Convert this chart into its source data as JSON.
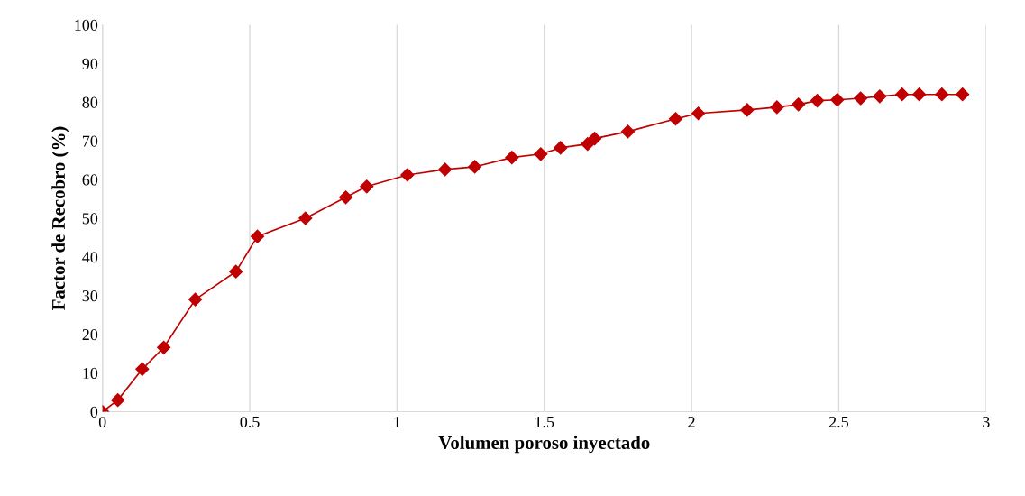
{
  "chart_data": {
    "type": "line",
    "xlabel": "Volumen poroso inyectado",
    "ylabel": "Factor de Recobro (%)",
    "xlim": [
      0,
      3
    ],
    "xticks": [
      0,
      0.5,
      1,
      1.5,
      2,
      2.5,
      3
    ],
    "ylim": [
      0,
      100
    ],
    "yticks": [
      0,
      10,
      20,
      30,
      40,
      50,
      60,
      70,
      80,
      90,
      100
    ],
    "grid": "x",
    "marker": "diamond",
    "line_style": "solid",
    "series": [
      {
        "color": "#c00000",
        "x": [
          0,
          0.052,
          0.135,
          0.208,
          0.315,
          0.453,
          0.526,
          0.689,
          0.826,
          0.897,
          1.035,
          1.163,
          1.264,
          1.39,
          1.488,
          1.555,
          1.647,
          1.671,
          1.784,
          1.946,
          2.023,
          2.189,
          2.29,
          2.363,
          2.427,
          2.495,
          2.574,
          2.639,
          2.715,
          2.773,
          2.85,
          2.92
        ],
        "values": [
          0,
          3,
          11,
          16.6,
          29,
          36.2,
          45.3,
          50,
          55.4,
          58.2,
          61.2,
          62.6,
          63.3,
          65.7,
          66.6,
          68.2,
          69.2,
          70.6,
          72.4,
          75.7,
          77.1,
          78,
          78.7,
          79.4,
          80.4,
          80.6,
          81,
          81.5,
          82,
          82,
          82,
          82
        ]
      }
    ]
  }
}
